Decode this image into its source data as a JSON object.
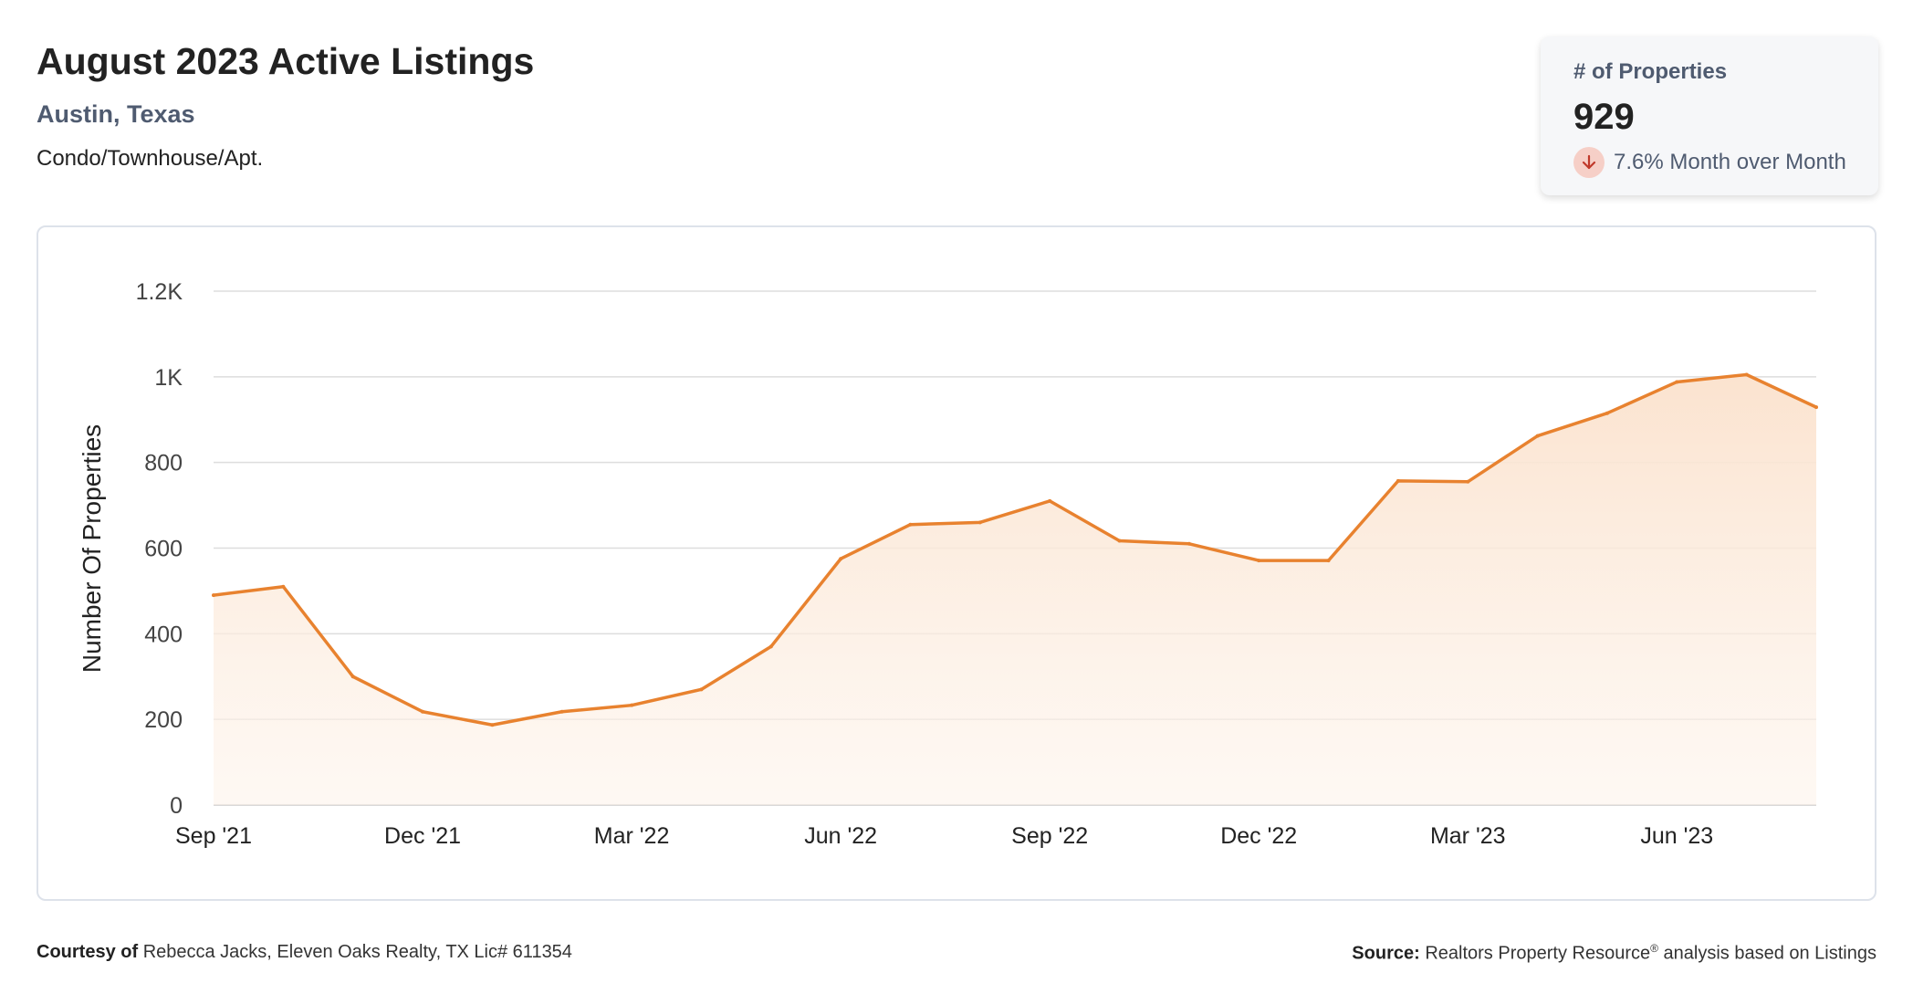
{
  "header": {
    "title": "August 2023 Active Listings",
    "location": "Austin, Texas",
    "property_type": "Condo/Townhouse/Apt."
  },
  "kpi": {
    "label": "# of Properties",
    "value": "929",
    "change_text": "7.6% Month over Month",
    "change_direction_icon": "arrow-down-icon"
  },
  "colors": {
    "line": "#e8822f",
    "fill": "#fbe3cf",
    "grid": "#dddddd",
    "down_badge": "#f6cfc7",
    "down_arrow": "#c0392b"
  },
  "chart_data": {
    "type": "area",
    "ylabel": "Number Of Properties",
    "ylim": [
      0,
      1200
    ],
    "yticks": [
      0,
      200,
      400,
      600,
      800,
      1000,
      1200
    ],
    "ytick_labels": [
      "0",
      "200",
      "400",
      "600",
      "800",
      "1K",
      "1.2K"
    ],
    "x": [
      "2021-09",
      "2021-10",
      "2021-11",
      "2021-12",
      "2022-01",
      "2022-02",
      "2022-03",
      "2022-04",
      "2022-05",
      "2022-06",
      "2022-07",
      "2022-08",
      "2022-09",
      "2022-10",
      "2022-11",
      "2022-12",
      "2023-01",
      "2023-02",
      "2023-03",
      "2023-04",
      "2023-05",
      "2023-06",
      "2023-07",
      "2023-08"
    ],
    "xtick_labels": [
      "Sep '21",
      "",
      "",
      "Dec '21",
      "",
      "",
      "Mar '22",
      "",
      "",
      "Jun '22",
      "",
      "",
      "Sep '22",
      "",
      "",
      "Dec '22",
      "",
      "",
      "Mar '23",
      "",
      "",
      "Jun '23",
      "",
      ""
    ],
    "series": [
      {
        "values": [
          490,
          510,
          300,
          218,
          187,
          218,
          233,
          270,
          370,
          575,
          655,
          660,
          710,
          617,
          610,
          571,
          571,
          757,
          755,
          862,
          915,
          988,
          1005,
          929
        ]
      }
    ],
    "grid": true,
    "legend": "none"
  },
  "footer": {
    "courtesy_label": "Courtesy of",
    "courtesy_text": "Rebecca Jacks, Eleven Oaks Realty, TX Lic# 611354",
    "source_label": "Source:",
    "source_text_before": "Realtors Property Resource",
    "source_sup": "®",
    "source_text_after": "analysis based on Listings"
  }
}
